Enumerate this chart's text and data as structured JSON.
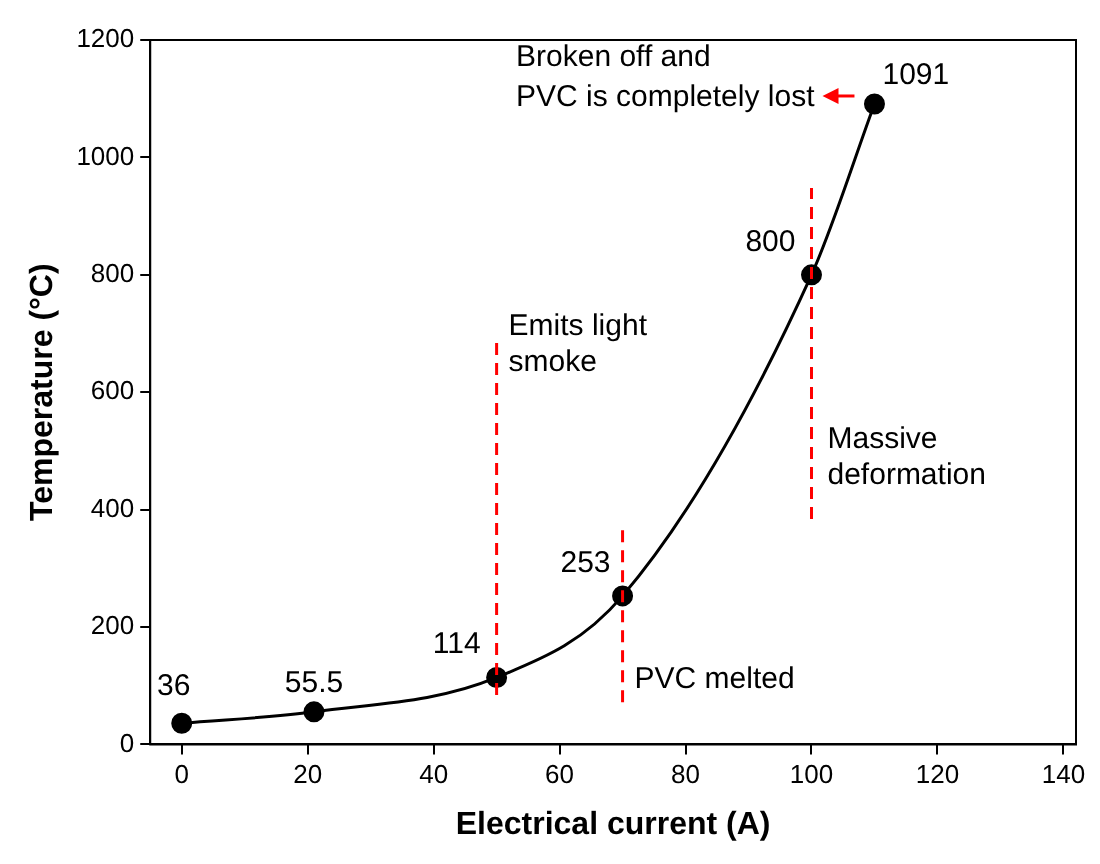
{
  "chart_data": {
    "type": "line",
    "xlabel": "Electrical current (A)",
    "ylabel": "Temperature (°C)",
    "x": [
      0,
      21,
      50,
      70,
      100,
      110
    ],
    "series": [
      {
        "color": "#000000",
        "values": [
          36,
          55.5,
          114,
          253,
          800,
          1091
        ]
      }
    ],
    "xlim": [
      -5,
      142
    ],
    "xticks": [
      0,
      20,
      40,
      60,
      80,
      100,
      120,
      140
    ],
    "ylim": [
      0,
      1200
    ],
    "yticks": [
      0,
      200,
      400,
      600,
      800,
      1000,
      1200
    ],
    "grid": false,
    "legend": false,
    "marker": "circle",
    "line_style": "solid",
    "data_labels": true,
    "ref_lines": [
      {
        "axis": "x",
        "value": 50,
        "label": "Emits light smoke",
        "color": "#ff0000",
        "line_style": "dashed"
      },
      {
        "axis": "x",
        "value": 70,
        "label": "PVC melted",
        "color": "#ff0000",
        "line_style": "dashed"
      },
      {
        "axis": "x",
        "value": 100,
        "label": "Massive deformation",
        "color": "#ff0000",
        "line_style": "dashed"
      }
    ],
    "annotations": [
      {
        "text": "Broken off and\nPVC is completely lost",
        "x": 110,
        "y": 1091
      }
    ]
  }
}
